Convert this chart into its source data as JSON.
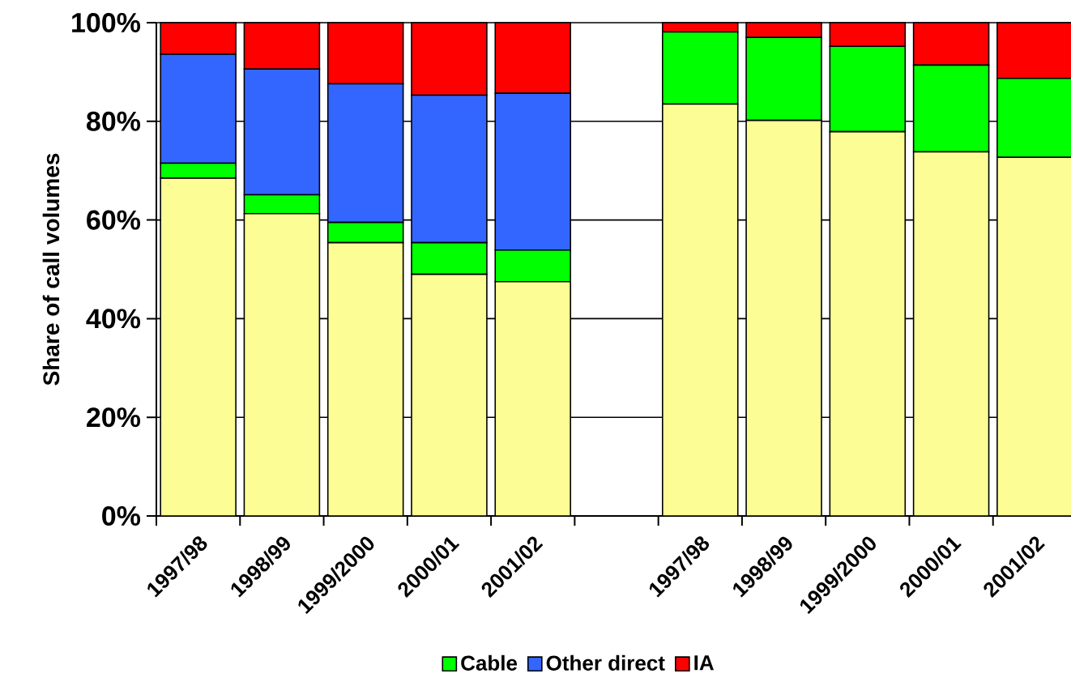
{
  "chart_data": {
    "type": "bar",
    "stacked": true,
    "ylabel": "Share of call volumes",
    "categories": [
      "1997/98",
      "1998/99",
      "1999/2000",
      "2000/01",
      "2001/02",
      null,
      "1997/98",
      "1998/99",
      "1999/2000",
      "2000/01",
      "2001/02"
    ],
    "series": [
      {
        "color": "#fdfd96",
        "values": [
          68.5,
          61.3,
          55.4,
          49.0,
          47.5,
          null,
          83.5,
          80.2,
          77.9,
          73.8,
          72.7
        ]
      },
      {
        "name": "Cable",
        "color": "#00ff00",
        "values": [
          3.0,
          3.8,
          4.1,
          6.4,
          6.4,
          null,
          14.6,
          16.8,
          17.3,
          17.6,
          16.0
        ]
      },
      {
        "name": "Other direct",
        "color": "#3366ff",
        "values": [
          22.1,
          25.5,
          28.1,
          29.9,
          31.8,
          null,
          0,
          0,
          0,
          0,
          0
        ]
      },
      {
        "name": "IA",
        "color": "#ff0000",
        "values": [
          6.4,
          9.4,
          12.4,
          14.7,
          14.3,
          null,
          1.9,
          3.0,
          4.8,
          8.6,
          11.3
        ]
      }
    ],
    "ylim": [
      0,
      100
    ],
    "yticks": [
      {
        "value": 0,
        "label": "0%"
      },
      {
        "value": 20,
        "label": "20%"
      },
      {
        "value": 40,
        "label": "40%"
      },
      {
        "value": 60,
        "label": "60%"
      },
      {
        "value": 80,
        "label": "80%"
      },
      {
        "value": 100,
        "label": "100%"
      }
    ],
    "grid": "y",
    "legend": "bottom"
  }
}
